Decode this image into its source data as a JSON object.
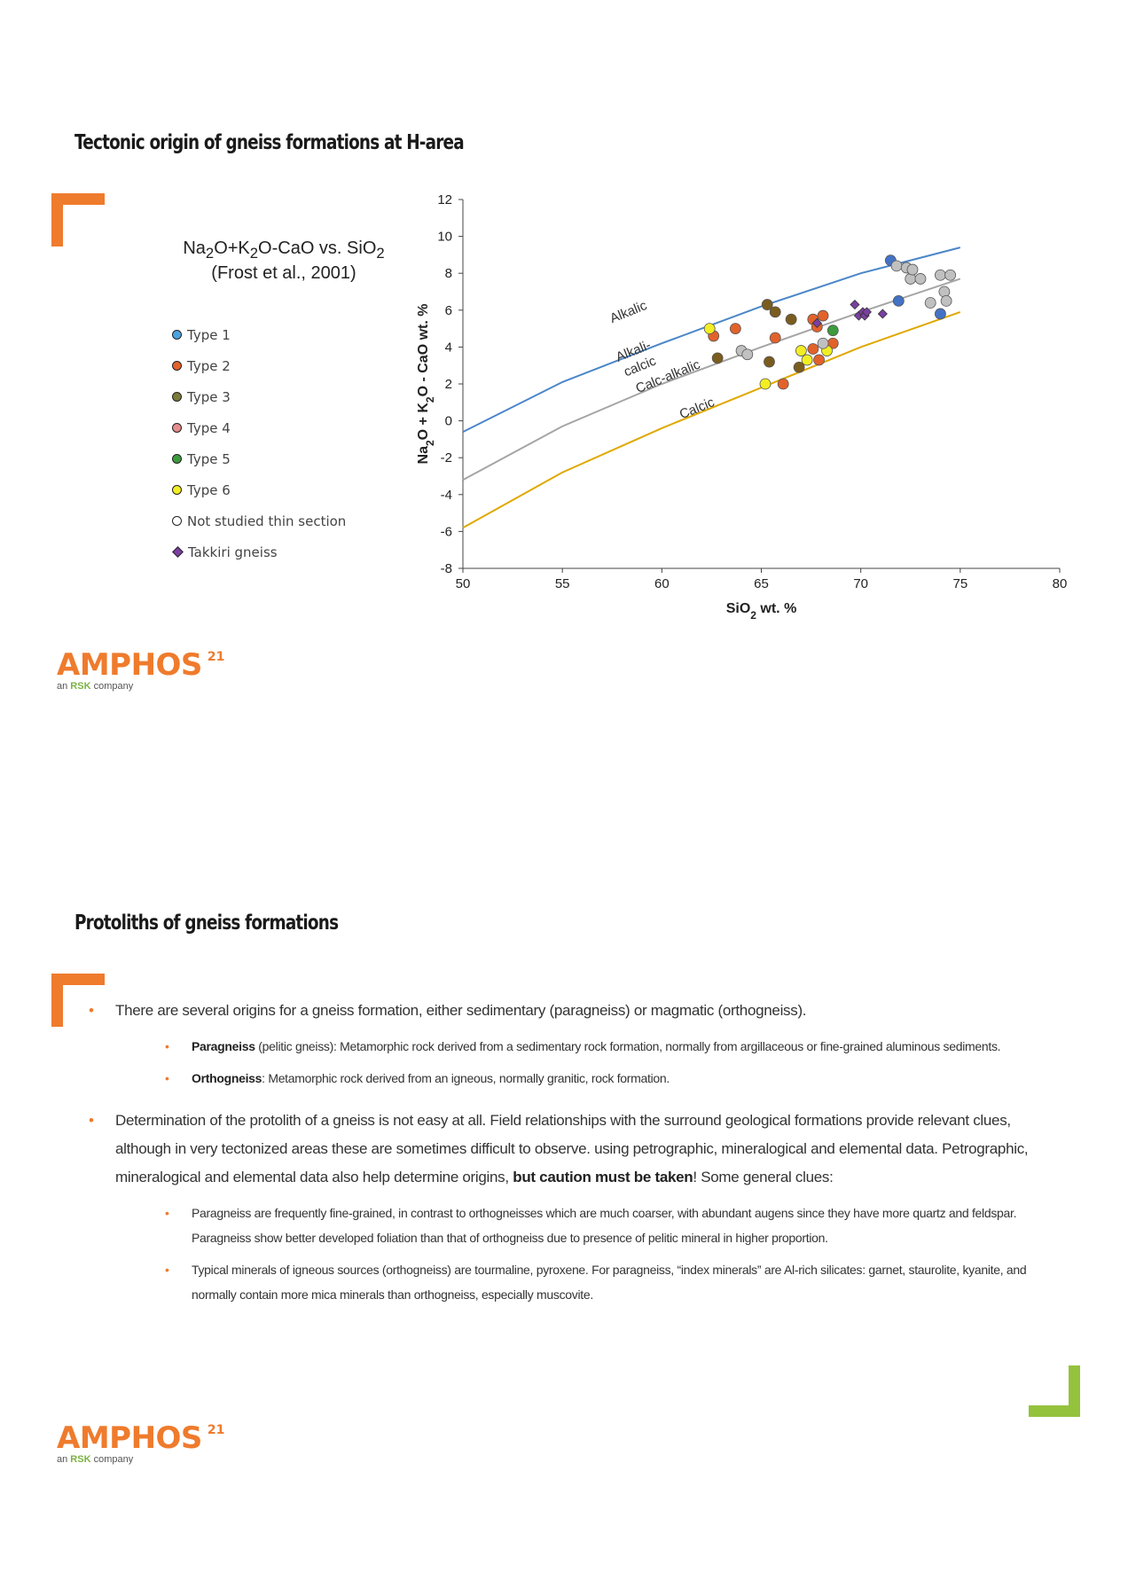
{
  "slide1": {
    "heading": "Tectonic origin of gneiss formations at H-area",
    "legend": {
      "title_pre": "Na",
      "title_s1": "2",
      "title_m1": "O+K",
      "title_s2": "2",
      "title_m2": "O-CaO vs. SiO",
      "title_s3": "2",
      "title_line2": "(Frost et al., 2001)",
      "items": [
        {
          "label": "Type 1",
          "color": "#4aa3df",
          "shape": "circle"
        },
        {
          "label": "Type 2",
          "color": "#e2622b",
          "shape": "circle"
        },
        {
          "label": "Type 3",
          "color": "#7a7a3a",
          "shape": "circle"
        },
        {
          "label": "Type 4",
          "color": "#e58c8c",
          "shape": "circle"
        },
        {
          "label": "Type 5",
          "color": "#3d9a3d",
          "shape": "circle"
        },
        {
          "label": "Type 6",
          "color": "#f2ee23",
          "shape": "circle"
        },
        {
          "label": "Not studied thin section",
          "color": "#ffffff",
          "shape": "circle"
        },
        {
          "label": "Takkiri gneiss",
          "color": "#7a3fa0",
          "shape": "diamond"
        }
      ]
    }
  },
  "chart_data": {
    "type": "scatter",
    "xlabel_main": "SiO",
    "xlabel_sub": "2",
    "xlabel_tail": " wt. %",
    "ylabel_a": "Na",
    "ylabel_a_sub": "2",
    "ylabel_b": "O + K",
    "ylabel_b_sub": "2",
    "ylabel_c": "O - CaO  wt. %",
    "xlim": [
      50,
      80
    ],
    "ylim": [
      -8,
      12
    ],
    "x_ticks": [
      "50",
      "55",
      "60",
      "65",
      "70",
      "75",
      "80"
    ],
    "y_ticks": [
      "12",
      "10",
      "8",
      "6",
      "4",
      "2",
      "0",
      "-2",
      "-4",
      "-6",
      "-8"
    ],
    "boundaries": [
      {
        "label": "Alkalic",
        "color": "#4a86c8",
        "points": [
          [
            50,
            -0.6
          ],
          [
            55,
            2.1
          ],
          [
            60,
            4.2
          ],
          [
            65,
            6.2
          ],
          [
            70,
            8.0
          ],
          [
            75,
            9.4
          ]
        ]
      },
      {
        "label": "Alkali-calcic",
        "color": "#a5a5a5",
        "points": [
          [
            50,
            -3.2
          ],
          [
            55,
            -0.3
          ],
          [
            60,
            2.0
          ],
          [
            65,
            4.0
          ],
          [
            70,
            5.9
          ],
          [
            75,
            7.7
          ]
        ]
      },
      {
        "label": "Calcic",
        "color": "#e0a800",
        "points": [
          [
            50,
            -5.8
          ],
          [
            55,
            -2.8
          ],
          [
            60,
            -0.4
          ],
          [
            65,
            1.8
          ],
          [
            70,
            4.0
          ],
          [
            75,
            5.9
          ]
        ]
      }
    ],
    "region_labels": [
      {
        "text": "Alkalic",
        "x": 57.5,
        "y": 5.3
      },
      {
        "text": "Alkali-",
        "x": 57.8,
        "y": 3.2
      },
      {
        "text": "calcic",
        "x": 58.2,
        "y": 2.4
      },
      {
        "text": "Calc-alkalic",
        "x": 58.8,
        "y": 1.5
      },
      {
        "text": "Calcic",
        "x": 61.0,
        "y": 0.1
      }
    ],
    "series": [
      {
        "name": "Type 1",
        "color": "#4472c4",
        "shape": "circle",
        "points": [
          [
            71.5,
            8.7
          ],
          [
            71.9,
            6.5
          ],
          [
            74.0,
            5.8
          ]
        ]
      },
      {
        "name": "Type 2",
        "color": "#e2622b",
        "shape": "circle",
        "points": [
          [
            62.6,
            4.6
          ],
          [
            63.7,
            5.0
          ],
          [
            65.7,
            4.5
          ],
          [
            66.1,
            2.0
          ],
          [
            67.6,
            3.9
          ],
          [
            67.6,
            5.5
          ],
          [
            67.8,
            5.1
          ],
          [
            67.9,
            3.3
          ],
          [
            68.1,
            5.7
          ],
          [
            68.6,
            4.2
          ]
        ]
      },
      {
        "name": "Type 3",
        "color": "#7a5c1e",
        "shape": "circle",
        "points": [
          [
            62.8,
            3.4
          ],
          [
            65.3,
            6.3
          ],
          [
            65.4,
            3.2
          ],
          [
            65.7,
            5.9
          ],
          [
            66.5,
            5.5
          ],
          [
            66.9,
            2.9
          ]
        ]
      },
      {
        "name": "Type 4",
        "color": "#e58c8c",
        "shape": "circle",
        "points": []
      },
      {
        "name": "Type 5",
        "color": "#3d9a3d",
        "shape": "circle",
        "points": [
          [
            68.6,
            4.9
          ]
        ]
      },
      {
        "name": "Type 6",
        "color": "#f2ee23",
        "shape": "circle",
        "points": [
          [
            62.4,
            5.0
          ],
          [
            65.2,
            2.0
          ],
          [
            67.0,
            3.8
          ],
          [
            67.3,
            3.3
          ],
          [
            68.3,
            3.8
          ]
        ]
      },
      {
        "name": "Not studied thin section",
        "color": "#c0c0c0",
        "shape": "circle",
        "points": [
          [
            64.0,
            3.8
          ],
          [
            64.3,
            3.6
          ],
          [
            68.1,
            4.2
          ],
          [
            71.8,
            8.4
          ],
          [
            72.3,
            8.3
          ],
          [
            72.5,
            7.7
          ],
          [
            72.6,
            8.2
          ],
          [
            73.0,
            7.7
          ],
          [
            73.5,
            6.4
          ],
          [
            74.0,
            7.9
          ],
          [
            74.2,
            7.0
          ],
          [
            74.3,
            6.5
          ],
          [
            74.5,
            7.9
          ]
        ]
      },
      {
        "name": "Takkiri gneiss",
        "color": "#7a3fa0",
        "shape": "diamond",
        "points": [
          [
            67.8,
            5.3
          ],
          [
            69.7,
            6.3
          ],
          [
            69.9,
            5.7
          ],
          [
            70.1,
            5.9
          ],
          [
            70.2,
            5.7
          ],
          [
            70.3,
            5.9
          ],
          [
            71.1,
            5.8
          ]
        ]
      }
    ],
    "grid": false,
    "legend": "left"
  },
  "slide2": {
    "heading": "Protoliths of gneiss formations",
    "b1": "There are several origins for a gneiss formation, either sedimentary (paragneiss) or magmatic (orthogneiss).",
    "b1a_term": "Paragneiss",
    "b1a_text": " (pelitic gneiss): Metamorphic rock derived from a sedimentary rock formation, normally from argillaceous or fine-grained aluminous sediments.",
    "b1b_term": "Orthogneiss",
    "b1b_text": ": Metamorphic rock derived from an igneous, normally granitic, rock formation.",
    "b2_pre": "Determination of the protolith of a gneiss is not easy at all. Field relationships with the surround geological formations provide relevant clues, although in very tectonized areas these are sometimes difficult to observe. using petrographic, mineralogical and elemental data. Petrographic, mineralogical and elemental  data also help determine origins, ",
    "b2_bold": "but caution must be taken",
    "b2_post": "! Some general clues:",
    "b2a": "Paragneiss are frequently fine-grained, in contrast to orthogneisses which are much coarser, with abundant augens since they have more quartz and feldspar. Paragneiss show better developed foliation than that of orthogneiss due to presence of pelitic mineral in higher proportion.",
    "b2b": "Typical minerals of igneous sources (orthogneiss) are tourmaline, pyroxene. For paragneiss, “index minerals” are Al-rich silicates: garnet, staurolite, kyanite, and normally contain more mica minerals than orthogneiss, especially muscovite."
  },
  "logo": {
    "name": "AMPHOS",
    "sup": "21",
    "sub_pre": "an ",
    "sub_rsk": "RSK",
    "sub_post": " company"
  },
  "colors": {
    "accent_orange": "#ef7b2d",
    "accent_green": "#95c23d"
  }
}
